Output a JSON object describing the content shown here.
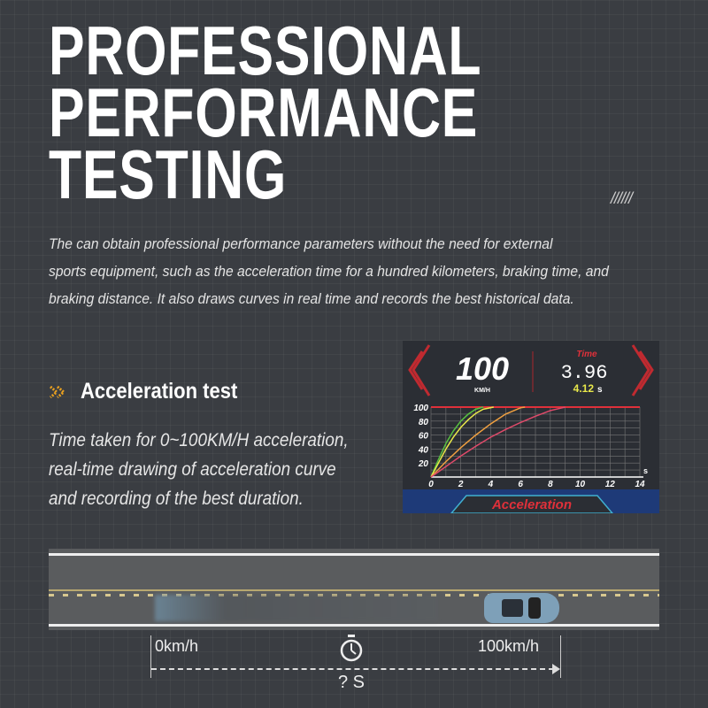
{
  "title": {
    "lines": [
      "PROFESSIONAL",
      "PERFORMANCE",
      "TESTING"
    ],
    "decoration": "//////"
  },
  "description": [
    "The can obtain professional performance parameters without the need for external",
    "sports equipment, such as the acceleration time for a hundred kilometers, braking time, and",
    "braking distance. It also draws curves in real time and records the best historical data."
  ],
  "feature": {
    "icon": "double-chevron-right-icon",
    "heading": "Acceleration test",
    "body": [
      "Time taken for 0~100KM/H acceleration,",
      "real-time drawing of acceleration curve",
      "and recording of the best duration."
    ]
  },
  "device": {
    "speed": "100",
    "speed_unit": "KM/H",
    "time_label": "Time",
    "time_value": "3.96",
    "best_value": "4.12",
    "best_unit": "s",
    "mode": "Acceleration",
    "colors": {
      "accent": "#e0303a",
      "best": "#e8e84a"
    },
    "chart_data": {
      "type": "line",
      "xlim": [
        0,
        14
      ],
      "ylim": [
        0,
        100
      ],
      "x_ticks": [
        "0",
        "2",
        "4",
        "6",
        "8",
        "10",
        "12",
        "14"
      ],
      "y_ticks": [
        "20",
        "40",
        "60",
        "80",
        "100"
      ],
      "x_unit": "s",
      "grid": true,
      "series": [
        {
          "color": "#58c040",
          "x": [
            0,
            0.5,
            1,
            1.5,
            2,
            2.5,
            3,
            3.5
          ],
          "y": [
            0,
            25,
            48,
            66,
            80,
            90,
            97,
            100
          ]
        },
        {
          "color": "#e8e84a",
          "x": [
            0,
            0.5,
            1,
            1.5,
            2,
            2.5,
            3,
            3.5,
            4.2
          ],
          "y": [
            0,
            20,
            40,
            57,
            71,
            82,
            91,
            97,
            100
          ]
        },
        {
          "color": "#f0a040",
          "x": [
            0,
            1,
            2,
            3,
            4,
            5,
            6,
            6.3
          ],
          "y": [
            0,
            22,
            42,
            60,
            76,
            90,
            99,
            100
          ]
        },
        {
          "color": "#e04a6a",
          "x": [
            0,
            1,
            2,
            3,
            4,
            5,
            6,
            7,
            8,
            9
          ],
          "y": [
            0,
            15,
            30,
            44,
            57,
            68,
            78,
            87,
            95,
            100
          ]
        }
      ]
    }
  },
  "diagram": {
    "start": "0km/h",
    "end": "100km/h",
    "duration": "? S",
    "icon": "stopwatch-icon"
  }
}
